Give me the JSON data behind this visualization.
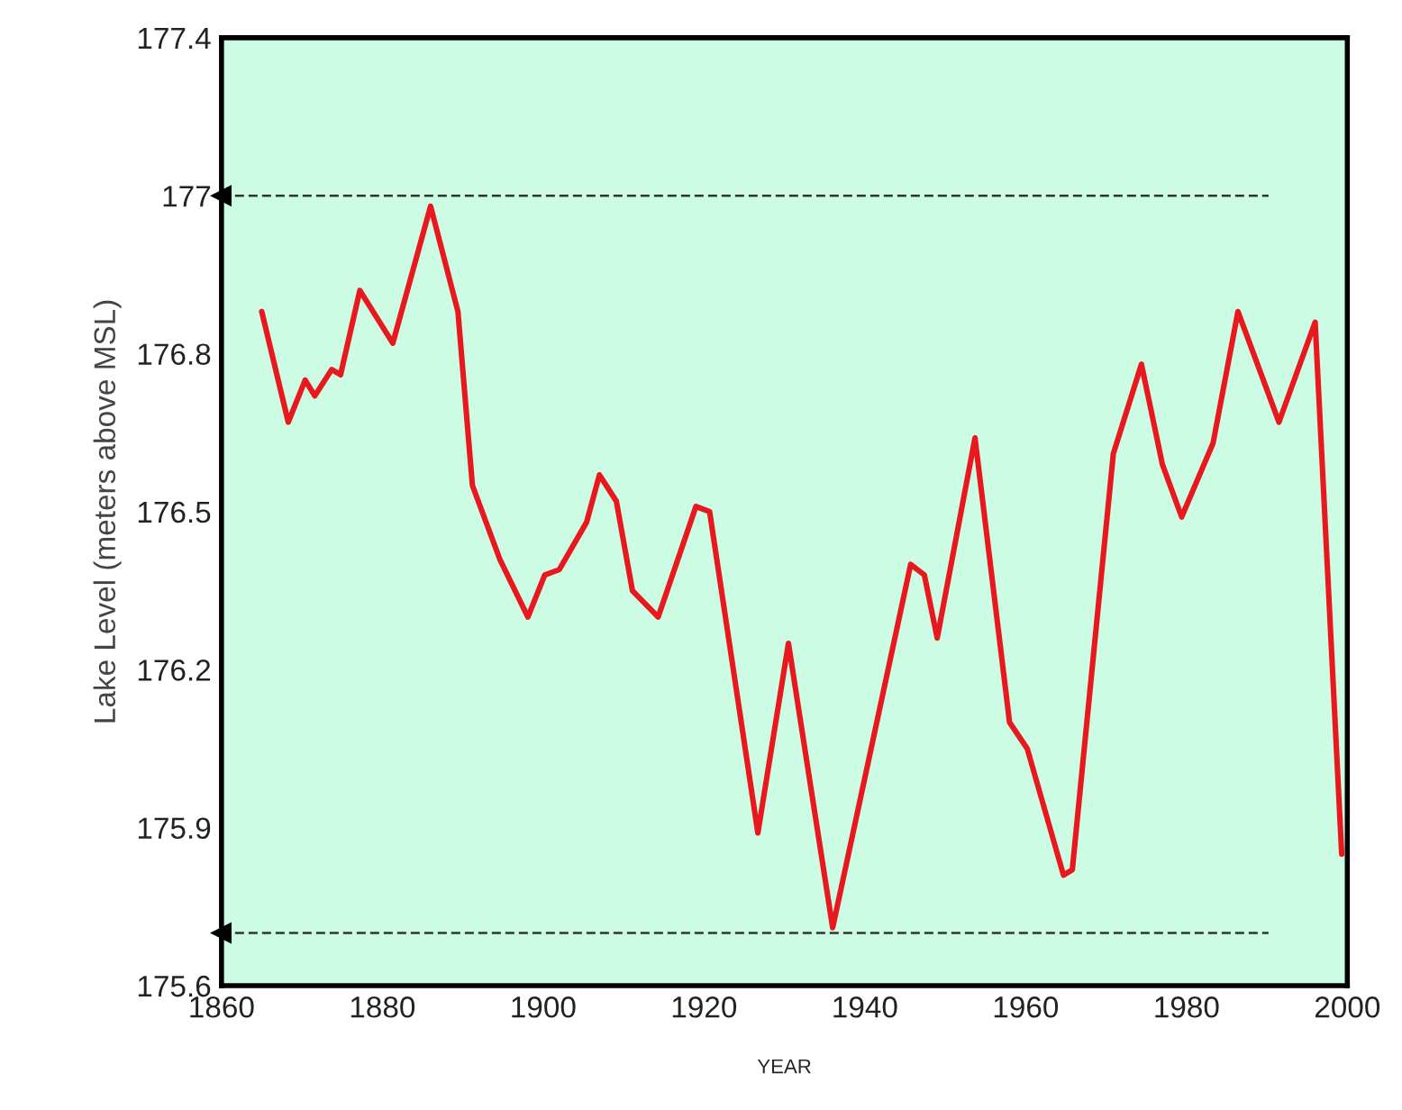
{
  "chart_data": {
    "type": "line",
    "xlabel": "YEAR",
    "ylabel": "Lake Level (meters above MSL)",
    "x": [
      1865,
      1868.3,
      1870.4,
      1871.6,
      1873.7,
      1874.8,
      1877.2,
      1881.3,
      1886,
      1889.4,
      1891.2,
      1894.6,
      1898.1,
      1900.2,
      1902,
      1905.4,
      1907,
      1909.1,
      1911.1,
      1914.3,
      1919,
      1920.7,
      1926.7,
      1930.5,
      1936,
      1945.7,
      1947.4,
      1949,
      1953.7,
      1958,
      1960.2,
      1964.7,
      1965.8,
      1970.9,
      1974.4,
      1977,
      1979.4,
      1983.3,
      1986.4,
      1991.5,
      1996,
      1999.3
    ],
    "series": [
      {
        "color": "#e8191e",
        "values": [
          176.88,
          176.67,
          176.75,
          176.72,
          176.77,
          176.76,
          176.92,
          176.82,
          177.08,
          176.88,
          176.55,
          176.41,
          176.3,
          176.38,
          176.39,
          176.48,
          176.57,
          176.52,
          176.35,
          176.3,
          176.51,
          176.5,
          175.89,
          176.25,
          175.71,
          176.4,
          176.38,
          176.26,
          176.64,
          176.1,
          176.05,
          175.81,
          175.82,
          176.61,
          176.78,
          176.59,
          176.49,
          176.63,
          176.88,
          176.67,
          176.86,
          175.85
        ]
      }
    ],
    "xlim": [
      1860,
      2000
    ],
    "xticks": [
      1860,
      1880,
      1900,
      1920,
      1940,
      1960,
      1980,
      2000
    ],
    "ylim": [
      175.6,
      177.4
    ],
    "yticks": [
      175.6,
      175.9,
      176.2,
      176.5,
      176.8,
      {
        "value": 177.1,
        "label": "177"
      },
      177.4
    ],
    "ref_lines": [
      {
        "axis": "y",
        "value": 177.1,
        "color": "#333333",
        "line_style": "dashed"
      },
      {
        "axis": "y",
        "value": 175.7,
        "color": "#333333",
        "line_style": "dashed"
      }
    ],
    "grid": false,
    "legend": false,
    "marker": "none",
    "line_style": "solid"
  }
}
